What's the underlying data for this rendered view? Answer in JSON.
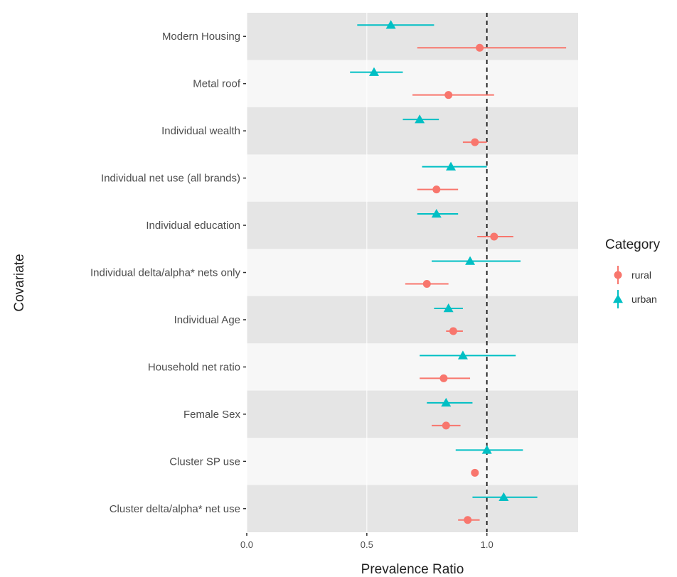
{
  "chart_data": {
    "type": "scatter",
    "subtype": "forest-plot",
    "xlabel": "Prevalence Ratio",
    "ylabel": "Covariate",
    "xlim": [
      0.0,
      1.38
    ],
    "xticks": [
      0.0,
      0.5,
      1.0
    ],
    "xtick_labels": [
      "0.0",
      "0.5",
      "1.0"
    ],
    "reference_line": 1.0,
    "grid": true,
    "categories": [
      "Modern Housing",
      "Metal roof",
      "Individual wealth",
      "Individual net use (all brands)",
      "Individual education",
      "Individual delta/alpha* nets only",
      "Individual Age",
      "Household net ratio",
      "Female Sex",
      "Cluster SP use",
      "Cluster delta/alpha* net use"
    ],
    "series": [
      {
        "name": "rural",
        "color": "#F8766D",
        "marker": "circle",
        "estimate": [
          0.97,
          0.84,
          0.95,
          0.79,
          1.03,
          0.75,
          0.86,
          0.82,
          0.83,
          0.95,
          0.92
        ],
        "lower": [
          0.71,
          0.69,
          0.9,
          0.71,
          0.96,
          0.66,
          0.83,
          0.72,
          0.77,
          0.95,
          0.88
        ],
        "upper": [
          1.33,
          1.03,
          1.0,
          0.88,
          1.11,
          0.84,
          0.9,
          0.93,
          0.89,
          0.95,
          0.97
        ]
      },
      {
        "name": "urban",
        "color": "#00BFC4",
        "marker": "triangle",
        "estimate": [
          0.6,
          0.53,
          0.72,
          0.85,
          0.79,
          0.93,
          0.84,
          0.9,
          0.83,
          1.0,
          1.07
        ],
        "lower": [
          0.46,
          0.43,
          0.65,
          0.73,
          0.71,
          0.77,
          0.78,
          0.72,
          0.75,
          0.87,
          0.94
        ],
        "upper": [
          0.78,
          0.65,
          0.8,
          1.0,
          0.88,
          1.14,
          0.9,
          1.12,
          0.94,
          1.15,
          1.21
        ]
      }
    ],
    "legend": {
      "title": "Category",
      "placement": "right",
      "entries": [
        "rural",
        "urban"
      ]
    }
  }
}
